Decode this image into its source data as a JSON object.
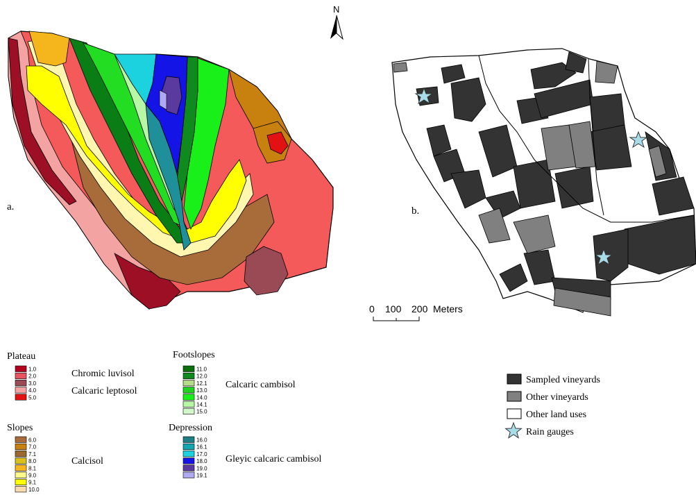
{
  "map_a": {
    "panel_label": "a.",
    "north_label": "N",
    "legend": {
      "groups": [
        {
          "title": "Plateau",
          "codes": [
            "1.0",
            "2.0",
            "3.0",
            "4.0",
            "5.0"
          ],
          "colors": [
            "#b3001e",
            "#e8545f",
            "#9a4a55",
            "#f4a3a3",
            "#e21212"
          ],
          "soil_names": [
            "Chromic luvisol",
            "Calcaric leptosol"
          ]
        },
        {
          "title": "Slopes",
          "codes": [
            "6.0",
            "7.0",
            "7.1",
            "8.0",
            "8.1",
            "9.0",
            "9.1",
            "10.0"
          ],
          "colors": [
            "#a86b3a",
            "#c8810f",
            "#9a6a2e",
            "#d8c21a",
            "#f5b51c",
            "#fffa8a",
            "#ffff00",
            "#f8dcb0"
          ],
          "soil_names": [
            "Calcisol"
          ]
        },
        {
          "title": "Footslopes",
          "codes": [
            "11.0",
            "12.0",
            "12.1",
            "13.0",
            "14.0",
            "14.1",
            "15.0"
          ],
          "colors": [
            "#0a6e0a",
            "#0e8a1e",
            "#b4dc8a",
            "#21d321",
            "#19ef19",
            "#b8f7a6",
            "#d2f7c8"
          ],
          "soil_names": [
            "Calcaric cambisol"
          ]
        },
        {
          "title": "Depression",
          "codes": [
            "16.0",
            "16.1",
            "17.0",
            "18.0",
            "19.0",
            "19.1"
          ],
          "colors": [
            "#1f7f86",
            "#16a6b0",
            "#1cd2df",
            "#1414e6",
            "#5a3a9e",
            "#b0aaf0"
          ],
          "soil_names": [
            "Gleyic calcaric cambisol"
          ]
        }
      ]
    }
  },
  "map_b": {
    "panel_label": "b.",
    "scale_bar": {
      "ticks": [
        "0",
        "100",
        "200"
      ],
      "unit": "Meters"
    },
    "legend": [
      {
        "label": "Sampled vineyards",
        "color": "#333333",
        "icon": "square"
      },
      {
        "label": "Other vineyards",
        "color": "#808080",
        "icon": "square"
      },
      {
        "label": "Other land uses",
        "color": "#ffffff",
        "icon": "square"
      },
      {
        "label": "Rain gauges",
        "color": "#a8dce8",
        "icon": "star-icon"
      }
    ]
  }
}
